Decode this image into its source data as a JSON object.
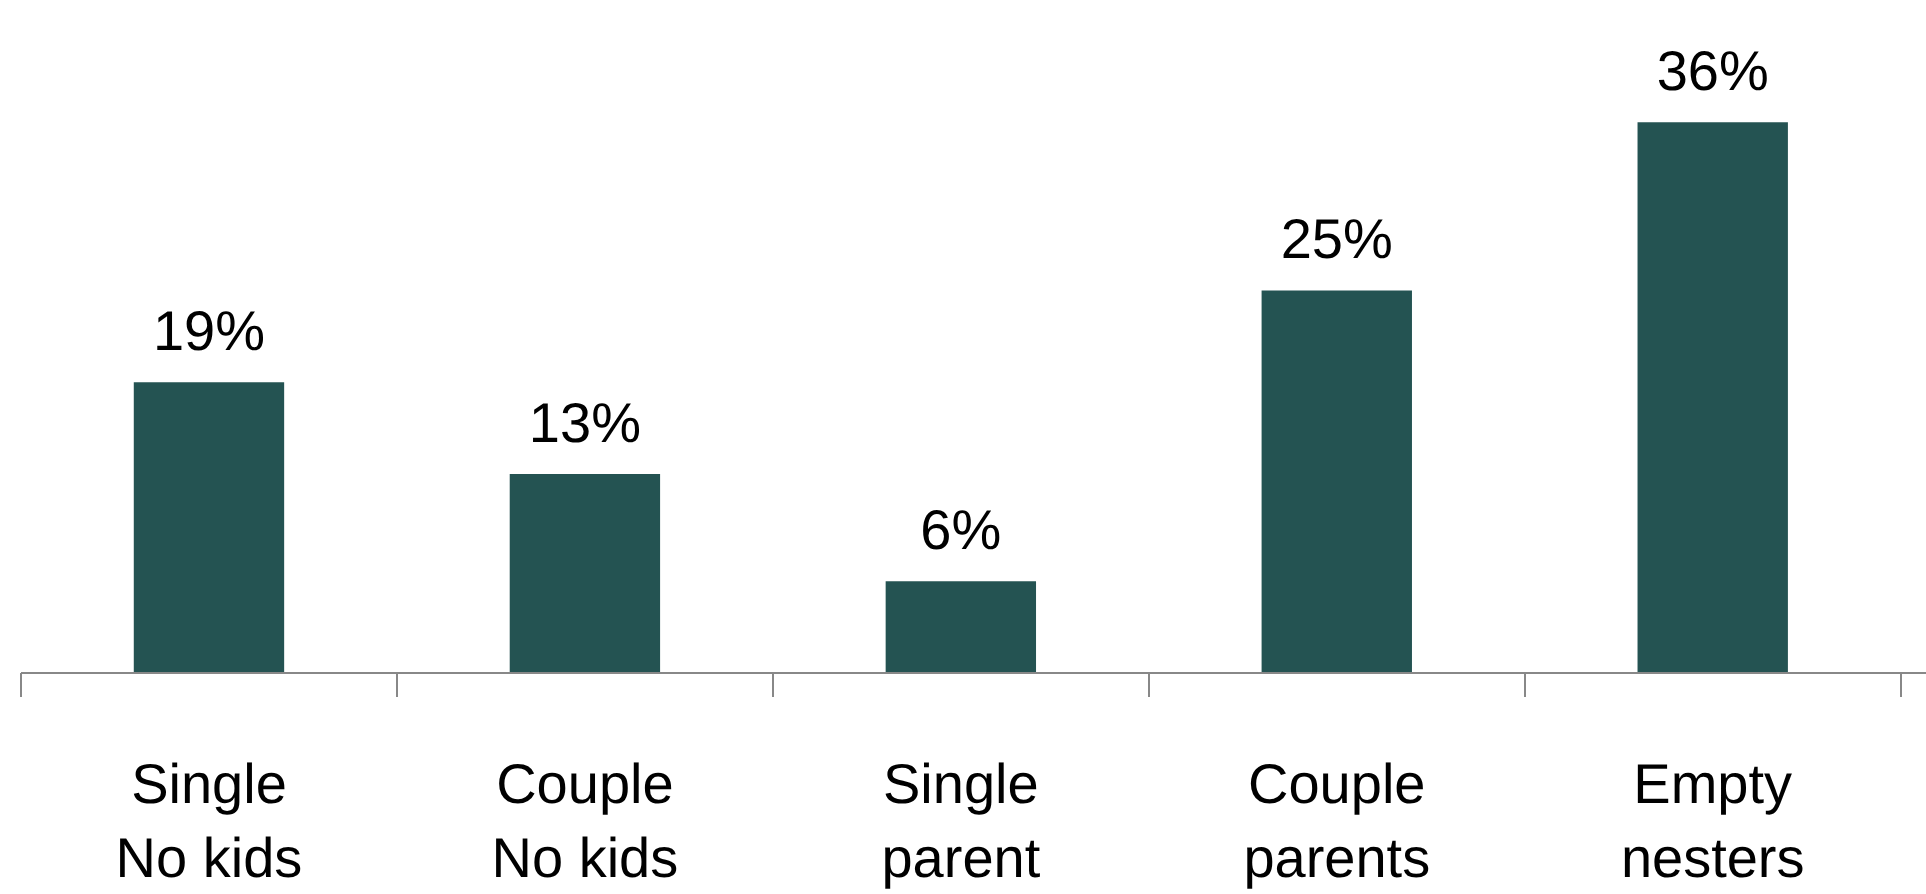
{
  "chart_data": {
    "type": "bar",
    "categories": [
      "Single\nNo kids",
      "Couple\nNo kids",
      "Single\nparent",
      "Couple\nparents",
      "Empty\nnesters"
    ],
    "values": [
      19,
      13,
      6,
      25,
      36
    ],
    "value_labels": [
      "19%",
      "13%",
      "6%",
      "25%",
      "36%"
    ],
    "color": "#245352",
    "grid": false
  }
}
